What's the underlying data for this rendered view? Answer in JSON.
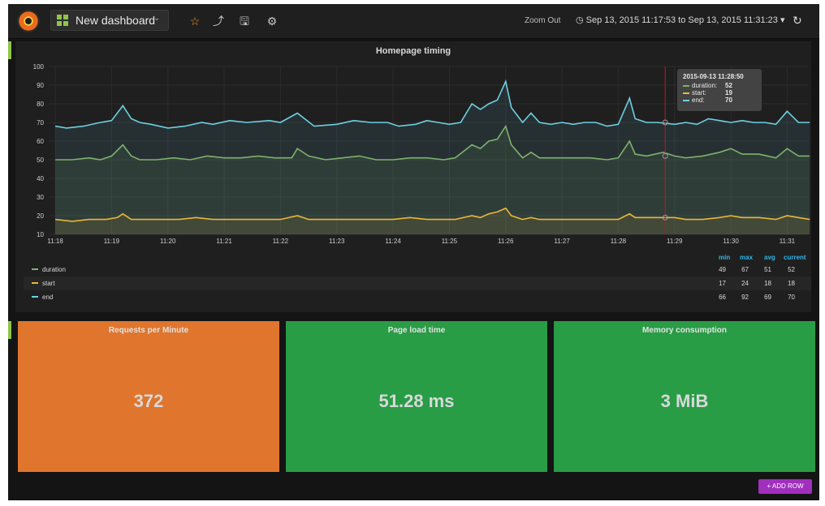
{
  "topnav": {
    "dashboard_title": "New dashboard",
    "zoom_out": "Zoom Out",
    "time_range": "Sep 13, 2015 11:17:53 to Sep 13, 2015 11:31:23",
    "icons": [
      "grafana-logo-icon",
      "dashboard-grid-icon",
      "star-icon",
      "share-icon",
      "save-icon",
      "cog-icon",
      "clock-icon",
      "refresh-icon"
    ]
  },
  "graph": {
    "title": "Homepage timing",
    "tooltip": {
      "time": "2015-09-13 11:28:50",
      "rows": [
        {
          "label": "duration:",
          "value": "52"
        },
        {
          "label": "start:",
          "value": "19"
        },
        {
          "label": "end:",
          "value": "70"
        }
      ]
    },
    "legend": {
      "headers": [
        "min",
        "max",
        "avg",
        "current"
      ],
      "rows": [
        {
          "name": "duration",
          "min": "49",
          "max": "67",
          "avg": "51",
          "current": "52"
        },
        {
          "name": "start",
          "min": "17",
          "max": "24",
          "avg": "18",
          "current": "18"
        },
        {
          "name": "end",
          "min": "66",
          "max": "92",
          "avg": "69",
          "current": "70"
        }
      ]
    }
  },
  "chart_data": {
    "type": "area",
    "title": "Homepage timing",
    "x": [
      "11:18",
      "11:19",
      "11:20",
      "11:21",
      "11:22",
      "11:23",
      "11:24",
      "11:25",
      "11:26",
      "11:27",
      "11:28",
      "11:29",
      "11:30",
      "11:31"
    ],
    "y_ticks": [
      10,
      20,
      30,
      40,
      50,
      60,
      70,
      80,
      90,
      100
    ],
    "ylim": [
      10,
      100
    ],
    "xlim_minutes": [
      "11:17:53",
      "11:31:23"
    ],
    "grid": true,
    "crosshair_time": "11:28:50",
    "series": [
      {
        "name": "end",
        "color": "#6ed0e0",
        "points": [
          [
            0.0,
            68
          ],
          [
            0.2,
            67
          ],
          [
            0.5,
            68
          ],
          [
            0.8,
            70
          ],
          [
            1.0,
            71
          ],
          [
            1.1,
            75
          ],
          [
            1.2,
            79
          ],
          [
            1.35,
            72
          ],
          [
            1.5,
            70
          ],
          [
            1.7,
            69
          ],
          [
            2.0,
            67
          ],
          [
            2.3,
            68
          ],
          [
            2.6,
            70
          ],
          [
            2.8,
            69
          ],
          [
            3.1,
            71
          ],
          [
            3.4,
            70
          ],
          [
            3.8,
            71
          ],
          [
            4.0,
            70
          ],
          [
            4.3,
            75
          ],
          [
            4.6,
            68
          ],
          [
            5.0,
            69
          ],
          [
            5.3,
            71
          ],
          [
            5.6,
            70
          ],
          [
            5.9,
            70
          ],
          [
            6.1,
            68
          ],
          [
            6.4,
            69
          ],
          [
            6.6,
            71
          ],
          [
            6.8,
            70
          ],
          [
            7.0,
            69
          ],
          [
            7.2,
            70
          ],
          [
            7.4,
            80
          ],
          [
            7.55,
            77
          ],
          [
            7.7,
            80
          ],
          [
            7.85,
            82
          ],
          [
            8.0,
            92
          ],
          [
            8.1,
            78
          ],
          [
            8.3,
            70
          ],
          [
            8.45,
            75
          ],
          [
            8.6,
            70
          ],
          [
            8.8,
            69
          ],
          [
            9.0,
            70
          ],
          [
            9.2,
            69
          ],
          [
            9.4,
            70
          ],
          [
            9.6,
            70
          ],
          [
            9.8,
            68
          ],
          [
            10.0,
            69
          ],
          [
            10.2,
            83
          ],
          [
            10.3,
            72
          ],
          [
            10.5,
            70
          ],
          [
            10.7,
            70
          ],
          [
            11.0,
            69
          ],
          [
            11.2,
            70
          ],
          [
            11.4,
            69
          ],
          [
            11.6,
            72
          ],
          [
            11.8,
            71
          ],
          [
            12.0,
            70
          ],
          [
            12.2,
            71
          ],
          [
            12.4,
            70
          ],
          [
            12.6,
            70
          ],
          [
            12.8,
            69
          ],
          [
            13.0,
            76
          ],
          [
            13.2,
            70
          ],
          [
            13.4,
            70
          ]
        ]
      },
      {
        "name": "duration",
        "color": "#7eb26d",
        "points": [
          [
            0.0,
            50
          ],
          [
            0.3,
            50
          ],
          [
            0.6,
            51
          ],
          [
            0.8,
            50
          ],
          [
            1.0,
            52
          ],
          [
            1.1,
            55
          ],
          [
            1.2,
            58
          ],
          [
            1.35,
            52
          ],
          [
            1.5,
            50
          ],
          [
            1.8,
            50
          ],
          [
            2.1,
            51
          ],
          [
            2.4,
            50
          ],
          [
            2.7,
            52
          ],
          [
            3.0,
            51
          ],
          [
            3.3,
            51
          ],
          [
            3.6,
            52
          ],
          [
            3.9,
            51
          ],
          [
            4.2,
            51
          ],
          [
            4.3,
            56
          ],
          [
            4.5,
            52
          ],
          [
            4.8,
            50
          ],
          [
            5.1,
            51
          ],
          [
            5.4,
            52
          ],
          [
            5.7,
            50
          ],
          [
            6.0,
            50
          ],
          [
            6.3,
            51
          ],
          [
            6.6,
            51
          ],
          [
            6.9,
            50
          ],
          [
            7.1,
            51
          ],
          [
            7.4,
            58
          ],
          [
            7.55,
            56
          ],
          [
            7.7,
            60
          ],
          [
            7.85,
            61
          ],
          [
            8.0,
            68
          ],
          [
            8.1,
            58
          ],
          [
            8.3,
            51
          ],
          [
            8.45,
            54
          ],
          [
            8.6,
            51
          ],
          [
            8.9,
            51
          ],
          [
            9.2,
            51
          ],
          [
            9.5,
            51
          ],
          [
            9.8,
            50
          ],
          [
            10.0,
            51
          ],
          [
            10.2,
            60
          ],
          [
            10.3,
            53
          ],
          [
            10.5,
            52
          ],
          [
            10.8,
            54
          ],
          [
            11.0,
            52
          ],
          [
            11.2,
            51
          ],
          [
            11.5,
            52
          ],
          [
            11.8,
            54
          ],
          [
            12.0,
            56
          ],
          [
            12.2,
            53
          ],
          [
            12.5,
            53
          ],
          [
            12.8,
            51
          ],
          [
            13.0,
            56
          ],
          [
            13.2,
            52
          ],
          [
            13.4,
            52
          ]
        ]
      },
      {
        "name": "start",
        "color": "#eab839",
        "points": [
          [
            0.0,
            18
          ],
          [
            0.3,
            17
          ],
          [
            0.6,
            18
          ],
          [
            0.9,
            18
          ],
          [
            1.1,
            19
          ],
          [
            1.2,
            21
          ],
          [
            1.35,
            18
          ],
          [
            1.6,
            18
          ],
          [
            1.9,
            18
          ],
          [
            2.2,
            18
          ],
          [
            2.5,
            19
          ],
          [
            2.8,
            18
          ],
          [
            3.1,
            18
          ],
          [
            3.4,
            18
          ],
          [
            3.7,
            18
          ],
          [
            4.0,
            18
          ],
          [
            4.3,
            20
          ],
          [
            4.5,
            18
          ],
          [
            4.8,
            18
          ],
          [
            5.1,
            18
          ],
          [
            5.4,
            18
          ],
          [
            5.7,
            18
          ],
          [
            6.0,
            18
          ],
          [
            6.3,
            19
          ],
          [
            6.6,
            18
          ],
          [
            6.9,
            18
          ],
          [
            7.1,
            18
          ],
          [
            7.4,
            20
          ],
          [
            7.55,
            19
          ],
          [
            7.7,
            21
          ],
          [
            7.85,
            22
          ],
          [
            8.0,
            24
          ],
          [
            8.1,
            20
          ],
          [
            8.3,
            18
          ],
          [
            8.45,
            19
          ],
          [
            8.6,
            18
          ],
          [
            8.9,
            18
          ],
          [
            9.2,
            18
          ],
          [
            9.5,
            18
          ],
          [
            9.8,
            18
          ],
          [
            10.0,
            18
          ],
          [
            10.2,
            21
          ],
          [
            10.3,
            19
          ],
          [
            10.5,
            19
          ],
          [
            10.8,
            19
          ],
          [
            11.0,
            19
          ],
          [
            11.2,
            18
          ],
          [
            11.5,
            18
          ],
          [
            11.8,
            19
          ],
          [
            12.0,
            20
          ],
          [
            12.2,
            19
          ],
          [
            12.5,
            19
          ],
          [
            12.8,
            18
          ],
          [
            13.0,
            20
          ],
          [
            13.2,
            19
          ],
          [
            13.4,
            18
          ]
        ]
      }
    ]
  },
  "stats": [
    {
      "title": "Requests per Minute",
      "value": "372",
      "color": "#e0752d"
    },
    {
      "title": "Page load time",
      "value": "51.28 ms",
      "color": "#299c46"
    },
    {
      "title": "Memory consumption",
      "value": "3 MiB",
      "color": "#299c46"
    }
  ],
  "add_row_label": "ADD ROW",
  "colors": {
    "background": "#141414",
    "panel": "#1f1f20",
    "accent_blue": "#33b5e5",
    "add_row": "#a12fbe"
  }
}
